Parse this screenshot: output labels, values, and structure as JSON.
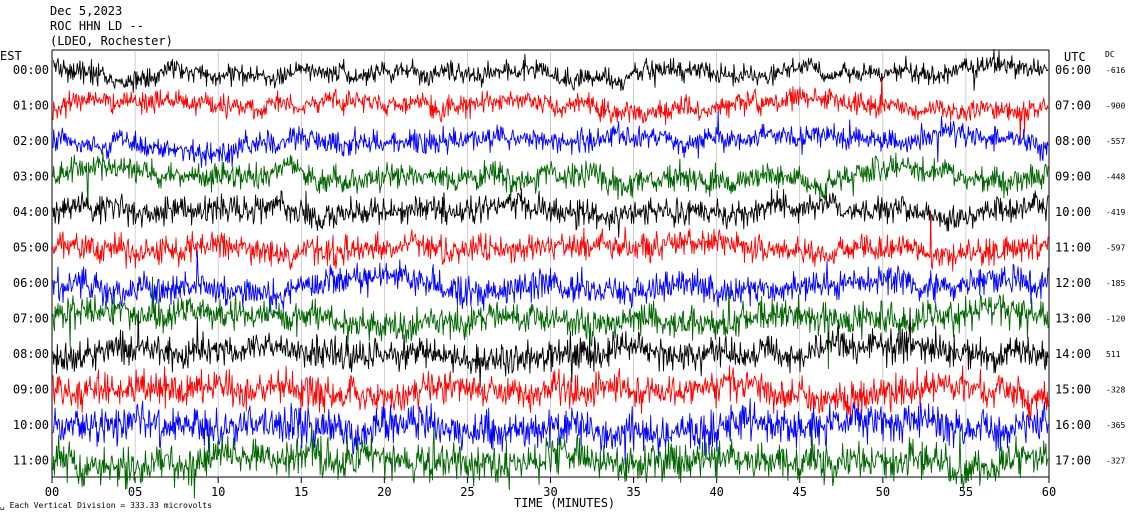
{
  "header": {
    "line1": "Dec 5,2023",
    "line2": "ROC HHN LD --",
    "line3": "(LDEO, Rochester)"
  },
  "left_zone_label": "EST",
  "right_zone_label": "UTC",
  "dc_label": "DC",
  "footer": {
    "prefix": "Each Vertical Division =",
    "value": "333.33 microvolts"
  },
  "chart_data": {
    "type": "line",
    "title": "",
    "xlabel": "TIME (MINUTES)",
    "ylabel": "",
    "xlim": [
      0,
      60
    ],
    "x_ticks": [
      "00",
      "05",
      "10",
      "15",
      "20",
      "25",
      "30",
      "35",
      "40",
      "45",
      "50",
      "55",
      "60"
    ],
    "grid": "vertical lines every 5 minutes",
    "colors": [
      "#000000",
      "#ff0000",
      "#0000ff",
      "#006400"
    ],
    "rows": [
      {
        "est": "00:00",
        "utc": "06:00",
        "dc": "-616",
        "color": "#000000",
        "amp": 0.7
      },
      {
        "est": "01:00",
        "utc": "07:00",
        "dc": "-900",
        "color": "#ff0000",
        "amp": 0.75
      },
      {
        "est": "02:00",
        "utc": "08:00",
        "dc": "-557",
        "color": "#0000ff",
        "amp": 0.8
      },
      {
        "est": "03:00",
        "utc": "09:00",
        "dc": "-448",
        "color": "#006400",
        "amp": 0.85
      },
      {
        "est": "04:00",
        "utc": "10:00",
        "dc": "-419",
        "color": "#000000",
        "amp": 0.9
      },
      {
        "est": "05:00",
        "utc": "11:00",
        "dc": "-597",
        "color": "#ff0000",
        "amp": 0.95
      },
      {
        "est": "06:00",
        "utc": "12:00",
        "dc": "-185",
        "color": "#0000ff",
        "amp": 1.0
      },
      {
        "est": "07:00",
        "utc": "13:00",
        "dc": "-120",
        "color": "#006400",
        "amp": 1.05
      },
      {
        "est": "08:00",
        "utc": "14:00",
        "dc": "511",
        "color": "#000000",
        "amp": 1.1
      },
      {
        "est": "09:00",
        "utc": "15:00",
        "dc": "-328",
        "color": "#ff0000",
        "amp": 1.15
      },
      {
        "est": "10:00",
        "utc": "16:00",
        "dc": "-365",
        "color": "#0000ff",
        "amp": 1.25
      },
      {
        "est": "11:00",
        "utc": "17:00",
        "dc": "-327",
        "color": "#006400",
        "amp": 1.3
      }
    ]
  }
}
